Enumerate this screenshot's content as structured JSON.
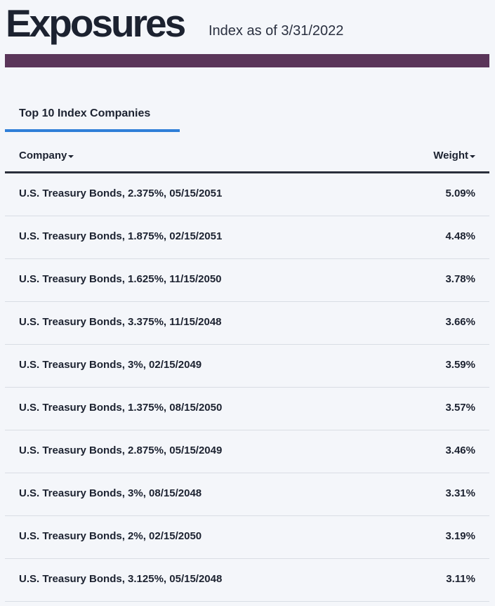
{
  "header": {
    "title": "Exposures",
    "as_of": "Index as of 3/31/2022"
  },
  "colors": {
    "accent_bar": "#5a3559",
    "tab_underline": "#2f7fd8",
    "background": "#f4f6fa"
  },
  "tabs": [
    {
      "label": "Top 10 Index Companies",
      "active": true
    }
  ],
  "table": {
    "columns": [
      {
        "label": "Company",
        "sort_icon": "caret-down-icon"
      },
      {
        "label": "Weight",
        "sort_icon": "caret-down-icon"
      }
    ],
    "rows": [
      {
        "company": "U.S. Treasury Bonds, 2.375%, 05/15/2051",
        "weight": "5.09%"
      },
      {
        "company": "U.S. Treasury Bonds, 1.875%, 02/15/2051",
        "weight": "4.48%"
      },
      {
        "company": "U.S. Treasury Bonds, 1.625%, 11/15/2050",
        "weight": "3.78%"
      },
      {
        "company": "U.S. Treasury Bonds, 3.375%, 11/15/2048",
        "weight": "3.66%"
      },
      {
        "company": "U.S. Treasury Bonds, 3%, 02/15/2049",
        "weight": "3.59%"
      },
      {
        "company": "U.S. Treasury Bonds, 1.375%, 08/15/2050",
        "weight": "3.57%"
      },
      {
        "company": "U.S. Treasury Bonds, 2.875%, 05/15/2049",
        "weight": "3.46%"
      },
      {
        "company": "U.S. Treasury Bonds, 3%, 08/15/2048",
        "weight": "3.31%"
      },
      {
        "company": "U.S. Treasury Bonds, 2%, 02/15/2050",
        "weight": "3.19%"
      },
      {
        "company": "U.S. Treasury Bonds, 3.125%, 05/15/2048",
        "weight": "3.11%"
      }
    ]
  }
}
